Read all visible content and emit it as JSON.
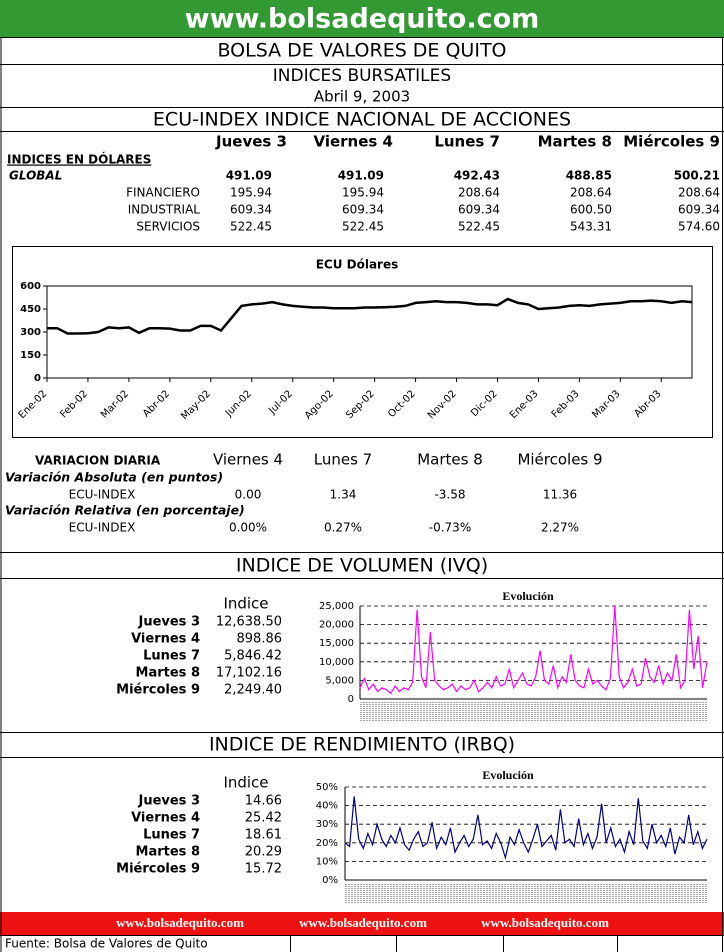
{
  "header": {
    "site": "www.bolsadequito.com",
    "title": "BOLSA DE VALORES DE QUITO",
    "subtitle": "INDICES BURSATILES",
    "date": "Abril 9, 2003",
    "section": "ECU-INDEX  INDICE NACIONAL DE ACCIONES"
  },
  "indices_table": {
    "days": [
      "Jueves 3",
      "Viernes 4",
      "Lunes 7",
      "Martes 8",
      "Miércoles 9"
    ],
    "group": "INDICES EN DÓLARES",
    "rows": [
      {
        "label": "GLOBAL",
        "values": [
          "491.09",
          "491.09",
          "492.43",
          "488.85",
          "500.21"
        ]
      },
      {
        "label": "FINANCIERO",
        "values": [
          "195.94",
          "195.94",
          "208.64",
          "208.64",
          "208.64"
        ]
      },
      {
        "label": "INDUSTRIAL",
        "values": [
          "609.34",
          "609.34",
          "609.34",
          "600.50",
          "609.34"
        ]
      },
      {
        "label": "SERVICIOS",
        "values": [
          "522.45",
          "522.45",
          "522.45",
          "543.31",
          "574.60"
        ]
      }
    ]
  },
  "variacion": {
    "title": "VARIACION DIARIA",
    "days": [
      "Viernes 4",
      "Lunes 7",
      "Martes 8",
      "Miércoles 9"
    ],
    "sections": [
      {
        "label": "Variación Absoluta (en puntos)",
        "row_label": "ECU-INDEX",
        "values": [
          "0.00",
          "1.34",
          "-3.58",
          "11.36"
        ]
      },
      {
        "label": "Variación Relativa (en porcentaje)",
        "row_label": "ECU-INDEX",
        "values": [
          "0.00%",
          "0.27%",
          "-0.73%",
          "2.27%"
        ]
      }
    ]
  },
  "volumen": {
    "title": "INDICE DE VOLUMEN (IVQ)",
    "column": "Indice",
    "rows": [
      {
        "label": "Jueves 3",
        "value": "12,638.50"
      },
      {
        "label": "Viernes 4",
        "value": "898.86"
      },
      {
        "label": "Lunes 7",
        "value": "5,846.42"
      },
      {
        "label": "Martes 8",
        "value": "17,102.16"
      },
      {
        "label": "Miércoles 9",
        "value": "2,249.40"
      }
    ]
  },
  "rendimiento": {
    "title": "INDICE DE RENDIMIENTO (IRBQ)",
    "column": "Indice",
    "rows": [
      {
        "label": "Jueves 3",
        "value": "14.66"
      },
      {
        "label": "Viernes 4",
        "value": "25.42"
      },
      {
        "label": "Lunes 7",
        "value": "18.61"
      },
      {
        "label": "Martes 8",
        "value": "20.29"
      },
      {
        "label": "Miércoles 9",
        "value": "15.72"
      }
    ]
  },
  "footer": {
    "links": [
      "www.bolsadequito.com",
      "www.bolsadequito.com",
      "www.bolsadequito.com"
    ],
    "source": "Fuente: Bolsa de Valores de Quito"
  },
  "chart_data": [
    {
      "type": "line",
      "title": "ECU Dólares",
      "color": "#000000",
      "grid": false,
      "categories": [
        "Ene-02",
        null,
        null,
        null,
        "Feb-02",
        null,
        null,
        null,
        "Mar-02",
        null,
        null,
        null,
        "Abr-02",
        null,
        null,
        null,
        "May-02",
        null,
        null,
        null,
        "Jun-02",
        null,
        null,
        null,
        "Jul-02",
        null,
        null,
        null,
        "Ago-02",
        null,
        null,
        null,
        "Sep-02",
        null,
        null,
        null,
        "Oct-02",
        null,
        null,
        null,
        "Nov-02",
        null,
        null,
        null,
        "Dic-02",
        null,
        null,
        null,
        "Ene-03",
        null,
        null,
        null,
        "Feb-03",
        null,
        null,
        null,
        "Mar-03",
        null,
        null,
        null,
        "Abr-03",
        null,
        null,
        null
      ],
      "values": [
        325,
        325,
        290,
        290,
        292,
        300,
        330,
        325,
        330,
        295,
        325,
        325,
        322,
        310,
        310,
        340,
        340,
        310,
        390,
        470,
        480,
        485,
        495,
        480,
        470,
        465,
        460,
        460,
        455,
        455,
        455,
        460,
        460,
        462,
        465,
        470,
        490,
        495,
        500,
        495,
        495,
        490,
        480,
        480,
        475,
        515,
        490,
        480,
        450,
        455,
        460,
        470,
        475,
        470,
        480,
        485,
        490,
        500,
        500,
        505,
        500,
        490,
        500,
        495
      ],
      "ylim": [
        0,
        600
      ],
      "yticks": [
        0,
        150,
        300,
        450,
        600
      ]
    },
    {
      "type": "line",
      "title": "Evolución",
      "color": "#ff00ff",
      "grid": true,
      "values": [
        3000,
        5500,
        2500,
        4000,
        2000,
        3000,
        2500,
        1500,
        3500,
        2000,
        3000,
        2500,
        4500,
        24000,
        6000,
        3000,
        18000,
        5000,
        3500,
        2500,
        3000,
        4000,
        2000,
        3500,
        2500,
        3000,
        5000,
        2000,
        3000,
        4500,
        3000,
        6000,
        3500,
        4000,
        8000,
        3000,
        5000,
        7000,
        4000,
        3500,
        6000,
        13000,
        5000,
        4000,
        9000,
        3000,
        6000,
        4500,
        12000,
        5000,
        3500,
        3000,
        8000,
        4000,
        5000,
        3500,
        2500,
        5500,
        25000,
        6000,
        3000,
        4500,
        8000,
        3500,
        4000,
        11000,
        6000,
        4500,
        9000,
        4000,
        7000,
        5000,
        12000,
        3000,
        5000,
        24000,
        8000,
        17000,
        3000,
        10000
      ],
      "ylim": [
        0,
        25000
      ],
      "yticks": [
        0,
        {
          "value": 5000,
          "label": "5,000"
        },
        {
          "value": 10000,
          "label": "10,000"
        },
        {
          "value": 15000,
          "label": "15,000"
        },
        {
          "value": 20000,
          "label": "20,000"
        },
        {
          "value": 25000,
          "label": "25,000"
        }
      ]
    },
    {
      "type": "line",
      "title": "Evolución",
      "color": "#000080",
      "grid": true,
      "values": [
        20,
        18,
        45,
        22,
        17,
        25,
        19,
        30,
        22,
        18,
        24,
        20,
        28,
        19,
        16,
        22,
        26,
        18,
        20,
        31,
        17,
        23,
        19,
        28,
        15,
        20,
        24,
        18,
        22,
        35,
        19,
        21,
        17,
        25,
        20,
        12,
        23,
        19,
        27,
        20,
        15,
        22,
        30,
        18,
        21,
        24,
        16,
        38,
        20,
        22,
        18,
        33,
        19,
        25,
        17,
        23,
        41,
        20,
        28,
        18,
        22,
        15,
        26,
        19,
        44,
        21,
        17,
        30,
        20,
        24,
        18,
        28,
        14,
        23,
        20,
        35,
        19,
        26,
        17,
        22
      ],
      "ylim": [
        0,
        50
      ],
      "yticks": [
        {
          "value": 0,
          "label": "0%"
        },
        {
          "value": 10,
          "label": "10%"
        },
        {
          "value": 20,
          "label": "20%"
        },
        {
          "value": 30,
          "label": "30%"
        },
        {
          "value": 40,
          "label": "40%"
        },
        {
          "value": 50,
          "label": "50%"
        }
      ]
    }
  ]
}
